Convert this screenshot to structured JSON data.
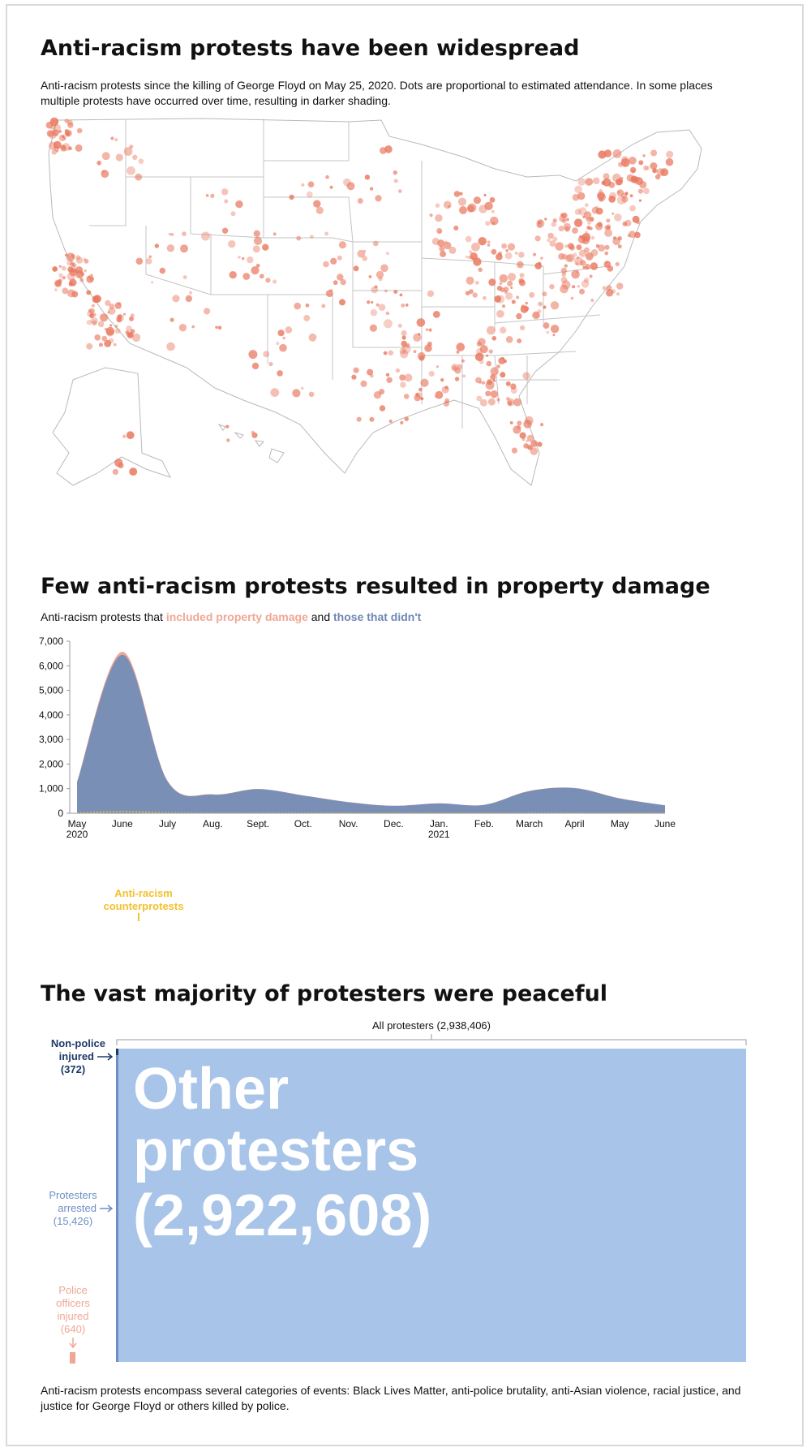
{
  "section1": {
    "title": "Anti-racism protests have been widespread",
    "description": "Anti-racism protests since the killing of George Floyd on May 25, 2020. Dots are proportional to estimated attendance. In some places multiple protests have occurred over time, resulting in darker shading."
  },
  "section2": {
    "title": "Few anti-racism protests resulted in property damage",
    "subtitle_prefix": "Anti-racism protests that ",
    "subtitle_damage": "included property damage",
    "subtitle_and": " and ",
    "subtitle_none": "those that didn't",
    "annotation_line1": "Anti-racism",
    "annotation_line2": "counterprotests"
  },
  "section3": {
    "title": "The vast majority of protesters were peaceful",
    "total_label": "All protesters (2,938,406)",
    "big_label_line1": "Other",
    "big_label_line2": "protesters",
    "big_label_line3": "(2,922,608)",
    "injured_line1": "Non-police",
    "injured_line2": "injured",
    "injured_line3": "(372)",
    "arrested_line1": "Protesters",
    "arrested_line2": "arrested",
    "arrested_line3": "(15,426)",
    "police_line1": "Police",
    "police_line2": "officers",
    "police_line3": "injured",
    "police_line4": "(640)"
  },
  "footnote": "Anti-racism protests encompass several categories of events: Black Lives Matter, anti-police brutality, anti-Asian violence, racial justice, and justice for George Floyd or others killed by police.",
  "colors": {
    "dots": "#e8775e",
    "no_damage": "#7a8fb6",
    "damage": "#f0a795",
    "counter": "#f2c12e",
    "peaceful": "#a8c4e8",
    "injured": "#1f3a68",
    "arrested": "#6f8fc4",
    "police": "#f0a795"
  },
  "chart_data": [
    {
      "type": "map",
      "title": "Anti-racism protests have been widespread"
    },
    {
      "type": "area",
      "title": "Few anti-racism protests resulted in property damage",
      "categories": [
        "May\n2020",
        "June",
        "July",
        "Aug.",
        "Sept.",
        "Oct.",
        "Nov.",
        "Dec.",
        "Jan.\n2021",
        "Feb.",
        "March",
        "April",
        "May",
        "June"
      ],
      "x_tick_labels": [
        [
          "May",
          "2020"
        ],
        [
          "June"
        ],
        [
          "July"
        ],
        [
          "Aug."
        ],
        [
          "Sept."
        ],
        [
          "Oct."
        ],
        [
          "Nov."
        ],
        [
          "Dec."
        ],
        [
          "Jan.",
          "2021"
        ],
        [
          "Feb."
        ],
        [
          "March"
        ],
        [
          "April"
        ],
        [
          "May"
        ],
        [
          "June"
        ]
      ],
      "y_tick_labels": [
        "0",
        "1,000",
        "2,000",
        "3,000",
        "4,000",
        "5,000",
        "6,000",
        "7,000"
      ],
      "ylim": [
        0,
        7000
      ],
      "series": [
        {
          "name": "those that didn't",
          "values": [
            1250,
            6450,
            1300,
            760,
            980,
            720,
            450,
            300,
            400,
            340,
            900,
            1020,
            600,
            320
          ]
        },
        {
          "name": "included property damage",
          "values": [
            40,
            120,
            25,
            12,
            10,
            8,
            6,
            5,
            5,
            4,
            8,
            10,
            6,
            4
          ]
        },
        {
          "name": "Anti-racism counterprotests",
          "values": [
            10,
            70,
            15,
            10,
            8,
            6,
            5,
            4,
            4,
            3,
            5,
            6,
            4,
            3
          ]
        }
      ]
    },
    {
      "type": "treemap",
      "title": "The vast majority of protesters were peaceful",
      "categories": [
        "Other protesters",
        "Protesters arrested",
        "Police officers injured",
        "Non-police injured"
      ],
      "values": [
        2922608,
        15426,
        640,
        372
      ],
      "total": 2938406
    }
  ]
}
